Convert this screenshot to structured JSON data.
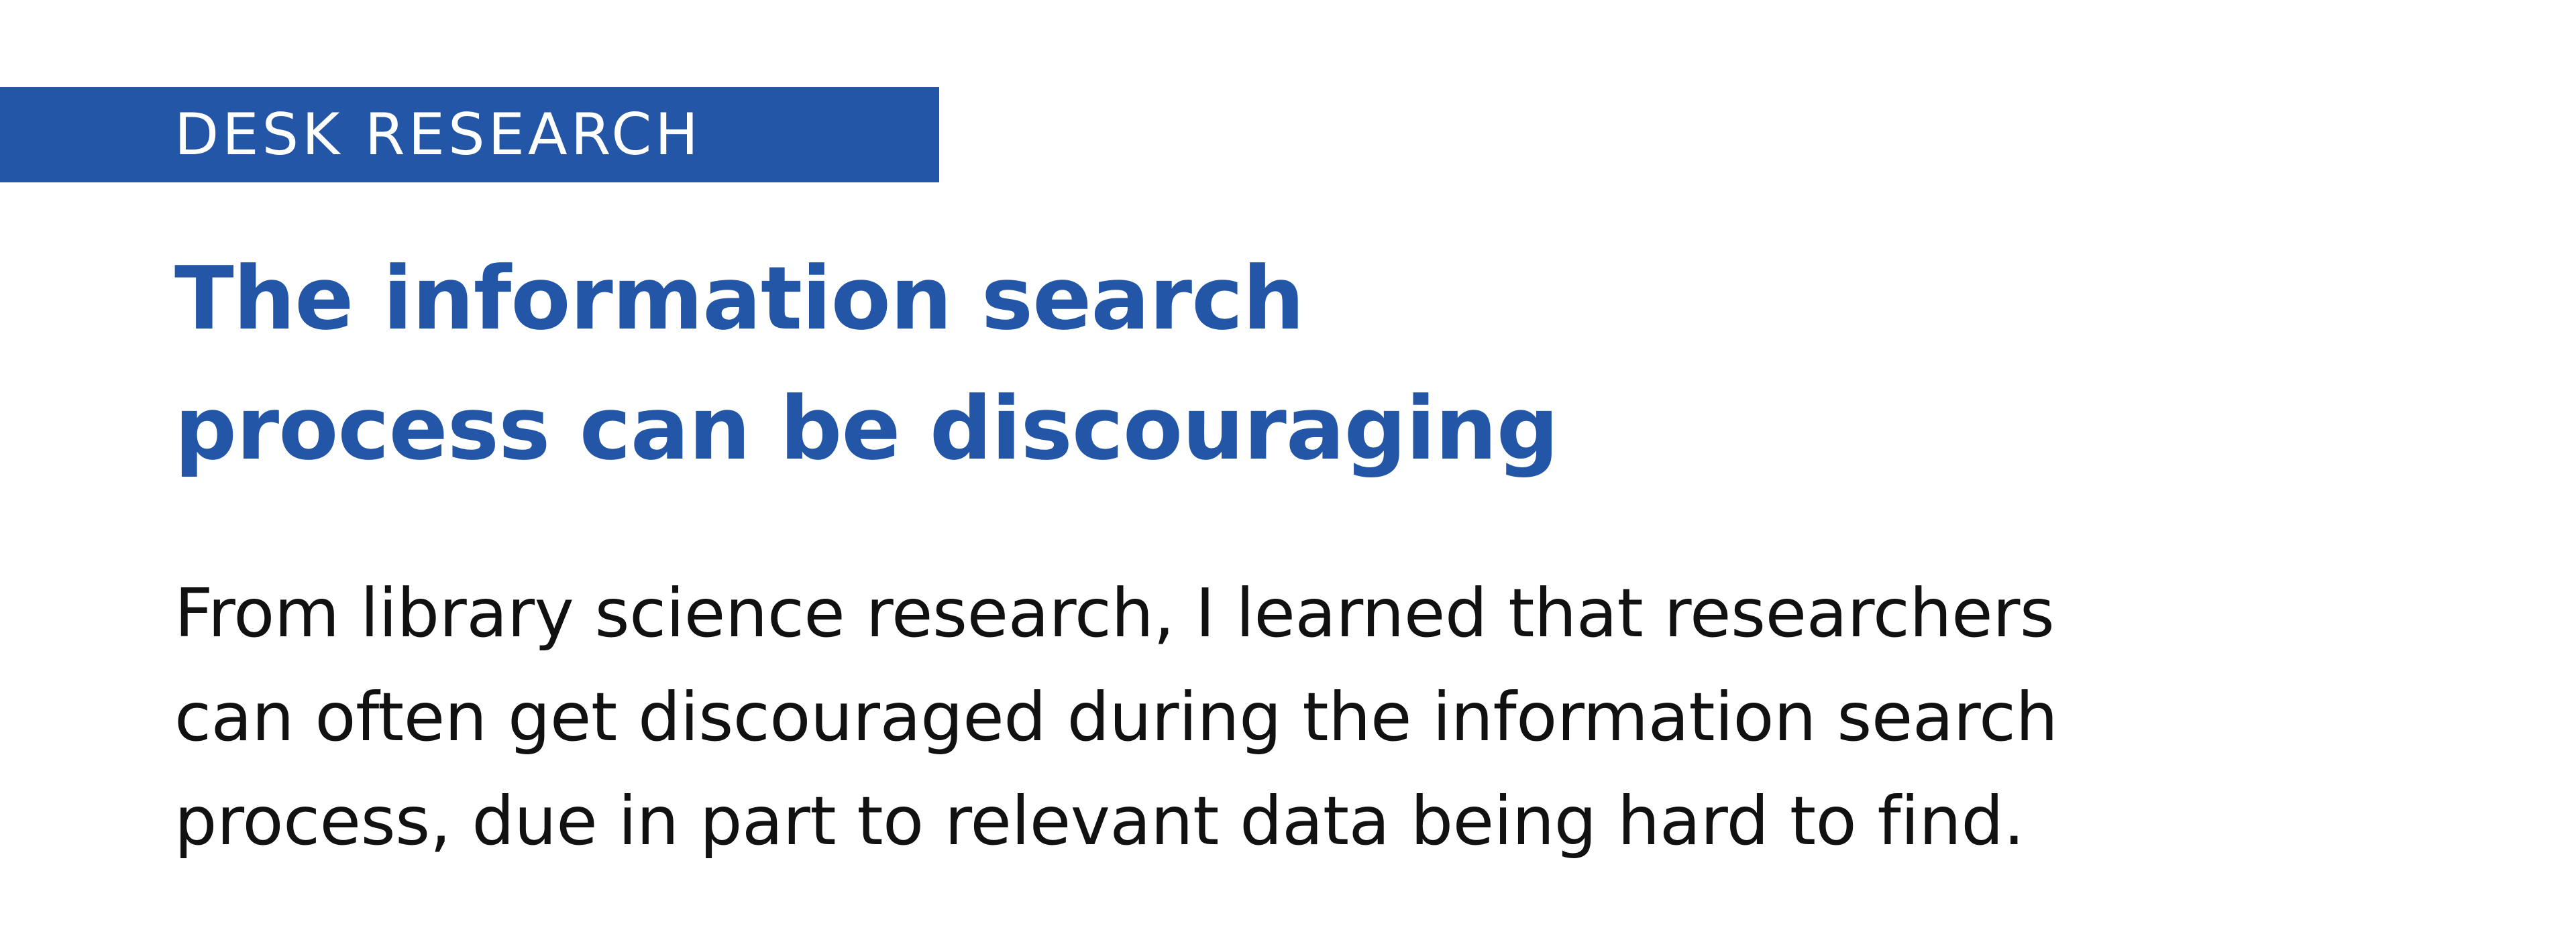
{
  "section": {
    "label": "DESK RESEARCH"
  },
  "headline": {
    "lines": [
      "The information search",
      "process can be discouraging"
    ]
  },
  "body": {
    "lines": [
      "From library science research, I learned that researchers",
      "can often get discouraged during the information search",
      "process, due in part to relevant data being hard to find."
    ]
  },
  "colors": {
    "accent": "#2356a6",
    "text": "#111111",
    "background": "#ffffff"
  }
}
